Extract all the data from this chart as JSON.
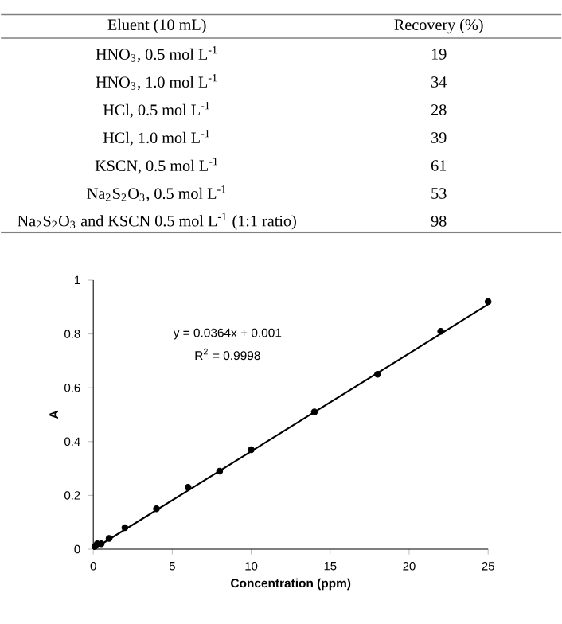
{
  "chart_data": [
    {
      "type": "other",
      "xlabel": "Eluent (10 mL)",
      "ylabel": "Recovery (%)",
      "categories": [
        "HNO$_{3}$, 0.5 mol L$^{-1}$",
        "HNO$_{3}$, 1.0 mol L$^{-1}$",
        "HCl, 0.5 mol L$^{-1}$",
        "HCl, 1.0 mol L$^{-1}$",
        "KSCN, 0.5 mol L$^{-1}$",
        "Na$_{2}$S$_{2}$O$_{3}$, 0.5 mol L$^{-1}$",
        "Na$_{2}$S$_{2}$O$_{3}$ and KSCN 0.5 mol L$^{-1}$ (1:1 ratio)"
      ],
      "values": [
        19,
        34,
        28,
        39,
        61,
        53,
        98
      ],
      "data_labels": true
    },
    {
      "type": "scatter",
      "xlabel": "Concentration (ppm)",
      "ylabel": "A",
      "xlim": [
        0,
        25
      ],
      "ylim": [
        0,
        1
      ],
      "xticks": [
        0,
        5,
        10,
        15,
        20,
        25
      ],
      "yticks": [
        0,
        0.2,
        0.4,
        0.6,
        0.8,
        1
      ],
      "annotations": [
        "y = 0.0364x + 0.001",
        "R$^{2}$ = 0.9998"
      ],
      "series": [
        {
          "type": "scatter",
          "color": "#000000",
          "marker": "circle",
          "x": [
            0.1,
            0.25,
            0.5,
            1,
            2,
            4,
            6,
            8,
            10,
            14,
            18,
            22,
            25
          ],
          "values": [
            0.01,
            0.02,
            0.02,
            0.04,
            0.08,
            0.15,
            0.23,
            0.29,
            0.37,
            0.51,
            0.65,
            0.81,
            0.92
          ]
        },
        {
          "type": "line",
          "color": "#000000",
          "line_style": "solid",
          "x": [
            0,
            25
          ],
          "values": [
            0,
            0.91
          ]
        }
      ]
    }
  ]
}
